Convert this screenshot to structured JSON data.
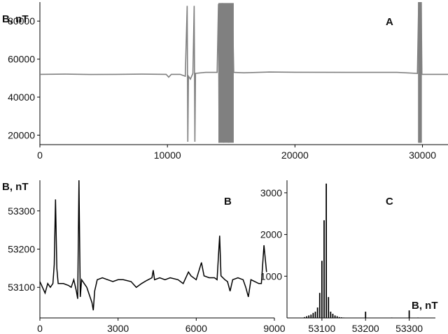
{
  "chart_data": [
    {
      "id": "A",
      "type": "line",
      "panel_label": "A",
      "ylabel": "B, nT",
      "xlim": [
        0,
        32000
      ],
      "ylim": [
        15000,
        90000
      ],
      "xticks": [
        0,
        10000,
        20000,
        30000
      ],
      "xtick_labels": [
        "0",
        "10000",
        "20000",
        "30000"
      ],
      "yticks": [
        20000,
        40000,
        60000,
        80000
      ],
      "ytick_labels": [
        "20000",
        "40000",
        "60000",
        "80000"
      ],
      "color": "#808080",
      "grid": false,
      "series": [
        {
          "baseline": 52000,
          "points": [
            [
              0,
              52000
            ],
            [
              2000,
              52100
            ],
            [
              4000,
              51900
            ],
            [
              6000,
              52000
            ],
            [
              8000,
              52100
            ],
            [
              9900,
              52000
            ],
            [
              10100,
              50500
            ],
            [
              10300,
              52000
            ],
            [
              11000,
              52000
            ],
            [
              11400,
              51000
            ],
            [
              11550,
              88000
            ],
            [
              11600,
              16500
            ],
            [
              11650,
              51000
            ],
            [
              11800,
              49500
            ],
            [
              12000,
              52500
            ],
            [
              12100,
              88000
            ],
            [
              12150,
              16500
            ],
            [
              12200,
              52500
            ],
            [
              13000,
              53000
            ],
            [
              13900,
              53000
            ],
            [
              14000,
              89000
            ],
            [
              14050,
              16000
            ],
            [
              14100,
              88500
            ],
            [
              14200,
              16500
            ],
            [
              14300,
              89500
            ],
            [
              14400,
              16000
            ],
            [
              14500,
              89000
            ],
            [
              14600,
              16200
            ],
            [
              14700,
              88800
            ],
            [
              14800,
              16000
            ],
            [
              14900,
              89300
            ],
            [
              15000,
              16400
            ],
            [
              15100,
              88500
            ],
            [
              15200,
              53000
            ],
            [
              16000,
              52800
            ],
            [
              18000,
              53200
            ],
            [
              20000,
              53100
            ],
            [
              24000,
              53000
            ],
            [
              28000,
              53000
            ],
            [
              29600,
              52500
            ],
            [
              29700,
              90000
            ],
            [
              29750,
              16000
            ],
            [
              29800,
              90000
            ],
            [
              29850,
              16000
            ],
            [
              29900,
              90000
            ],
            [
              29950,
              52000
            ],
            [
              31000,
              52000
            ],
            [
              32000,
              52000
            ]
          ]
        }
      ]
    },
    {
      "id": "B",
      "type": "line",
      "panel_label": "B",
      "ylabel": "B, nT",
      "xlim": [
        0,
        9000
      ],
      "ylim": [
        53020,
        53380
      ],
      "xticks": [
        0,
        3000,
        6000,
        9000
      ],
      "xtick_labels": [
        "0",
        "3000",
        "6000",
        "9000"
      ],
      "yticks": [
        53100,
        53200,
        53300
      ],
      "ytick_labels": [
        "53100",
        "53200",
        "53300"
      ],
      "color": "#000000",
      "grid": false,
      "series": [
        {
          "points": [
            [
              0,
              53115
            ],
            [
              100,
              53100
            ],
            [
              200,
              53085
            ],
            [
              300,
              53110
            ],
            [
              400,
              53100
            ],
            [
              500,
              53110
            ],
            [
              550,
              53160
            ],
            [
              600,
              53330
            ],
            [
              650,
              53150
            ],
            [
              700,
              53110
            ],
            [
              900,
              53110
            ],
            [
              1100,
              53105
            ],
            [
              1200,
              53100
            ],
            [
              1300,
              53120
            ],
            [
              1400,
              53090
            ],
            [
              1450,
              53070
            ],
            [
              1500,
              53380
            ],
            [
              1550,
              53075
            ],
            [
              1600,
              53120
            ],
            [
              1700,
              53110
            ],
            [
              1800,
              53100
            ],
            [
              1900,
              53080
            ],
            [
              2000,
              53060
            ],
            [
              2050,
              53040
            ],
            [
              2100,
              53090
            ],
            [
              2200,
              53120
            ],
            [
              2400,
              53125
            ],
            [
              2600,
              53120
            ],
            [
              2800,
              53115
            ],
            [
              3000,
              53120
            ],
            [
              3200,
              53120
            ],
            [
              3500,
              53115
            ],
            [
              3700,
              53100
            ],
            [
              3900,
              53110
            ],
            [
              4100,
              53118
            ],
            [
              4300,
              53125
            ],
            [
              4350,
              53145
            ],
            [
              4400,
              53120
            ],
            [
              4600,
              53125
            ],
            [
              4800,
              53120
            ],
            [
              5000,
              53125
            ],
            [
              5300,
              53120
            ],
            [
              5500,
              53110
            ],
            [
              5700,
              53140
            ],
            [
              5800,
              53130
            ],
            [
              6000,
              53120
            ],
            [
              6200,
              53165
            ],
            [
              6300,
              53130
            ],
            [
              6500,
              53125
            ],
            [
              6700,
              53125
            ],
            [
              6800,
              53120
            ],
            [
              6900,
              53235
            ],
            [
              6950,
              53130
            ],
            [
              7100,
              53120
            ],
            [
              7200,
              53115
            ],
            [
              7300,
              53090
            ],
            [
              7400,
              53120
            ],
            [
              7600,
              53125
            ],
            [
              7800,
              53120
            ],
            [
              7900,
              53100
            ],
            [
              8000,
              53075
            ],
            [
              8100,
              53120
            ],
            [
              8400,
              53110
            ],
            [
              8500,
              53110
            ],
            [
              8600,
              53210
            ],
            [
              8700,
              53140
            ]
          ]
        }
      ]
    },
    {
      "id": "C",
      "type": "bar",
      "panel_label": "C",
      "xlabel": "B, nT",
      "xlim": [
        53020,
        53360
      ],
      "ylim": [
        0,
        3300
      ],
      "xticks": [
        53100,
        53200,
        53300
      ],
      "xtick_labels": [
        "53100",
        "53200",
        "53300"
      ],
      "yticks": [
        1000,
        2000,
        3000
      ],
      "ytick_labels": [
        "1000",
        "2000",
        "3000"
      ],
      "color": "#000000",
      "grid": false,
      "series": [
        {
          "x": [
            53060,
            53065,
            53070,
            53075,
            53080,
            53085,
            53090,
            53095,
            53100,
            53105,
            53110,
            53115,
            53120,
            53125,
            53130,
            53135,
            53140,
            53145,
            53150,
            53160,
            53170,
            53185,
            53200,
            53260,
            53300,
            53320
          ],
          "values": [
            20,
            40,
            60,
            80,
            120,
            150,
            250,
            600,
            1370,
            2340,
            3220,
            500,
            150,
            100,
            60,
            40,
            20,
            15,
            10,
            8,
            5,
            5,
            150,
            10,
            180,
            10
          ]
        }
      ]
    }
  ]
}
